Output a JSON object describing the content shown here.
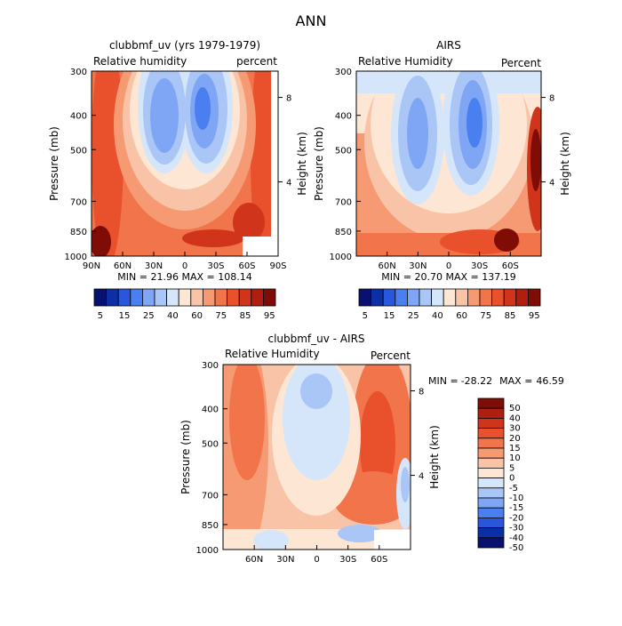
{
  "figure_title": "ANN",
  "chart_data": [
    {
      "type": "heatmap",
      "title": "clubbmf_uv (yrs 1979-1979)",
      "variable_label": "Relative humidity",
      "units_label": "percent",
      "ylabel": "Pressure (mb)",
      "ylabel_right": "Height (km)",
      "x_tick_labels": [
        "90N",
        "60N",
        "30N",
        "0",
        "30S",
        "60S",
        "90S"
      ],
      "y_tick_labels": [
        "300",
        "400",
        "500",
        "700",
        "850",
        "1000"
      ],
      "right_tick_labels": [
        "8",
        "4"
      ],
      "min_label": "MIN =",
      "min_value": "21.96",
      "max_label": "MAX =",
      "max_value": "108.14",
      "x_range": [
        90,
        -90
      ],
      "pressure_range": [
        300,
        1000
      ],
      "colorbar_tick_labels": [
        "5",
        "15",
        "25",
        "40",
        "60",
        "75",
        "85",
        "95"
      ],
      "colorbar_levels": [
        5,
        10,
        15,
        20,
        25,
        30,
        40,
        50,
        60,
        70,
        75,
        80,
        85,
        90,
        95
      ]
    },
    {
      "type": "heatmap",
      "title": "AIRS",
      "variable_label": "Relative Humidity",
      "units_label": "Percent",
      "ylabel": "Pressure (mb)",
      "ylabel_right": "Height (km)",
      "x_tick_labels": [
        "60N",
        "30N",
        "0",
        "30S",
        "60S"
      ],
      "y_tick_labels": [
        "300",
        "400",
        "500",
        "700",
        "850",
        "1000"
      ],
      "right_tick_labels": [
        "8",
        "4"
      ],
      "min_label": "MIN =",
      "min_value": "20.70",
      "max_label": "MAX =",
      "max_value": "137.19",
      "x_range": [
        90,
        -90
      ],
      "pressure_range": [
        300,
        1000
      ],
      "colorbar_tick_labels": [
        "5",
        "15",
        "25",
        "40",
        "60",
        "75",
        "85",
        "95"
      ],
      "colorbar_levels": [
        5,
        10,
        15,
        20,
        25,
        30,
        40,
        50,
        60,
        70,
        75,
        80,
        85,
        90,
        95
      ]
    },
    {
      "type": "heatmap",
      "title": "clubbmf_uv - AIRS",
      "variable_label": "Relative Humidity",
      "units_label": "Percent",
      "ylabel": "Pressure (mb)",
      "ylabel_right": "Height (km)",
      "x_tick_labels": [
        "60N",
        "30N",
        "0",
        "30S",
        "60S"
      ],
      "y_tick_labels": [
        "300",
        "400",
        "500",
        "700",
        "850",
        "1000"
      ],
      "right_tick_labels": [
        "8",
        "4"
      ],
      "min_label": "MIN =",
      "min_value": "-28.22",
      "max_label": "MAX =",
      "max_value": "46.59",
      "x_range": [
        90,
        -90
      ],
      "pressure_range": [
        300,
        1000
      ],
      "colorbar_tick_labels": [
        "50",
        "40",
        "30",
        "20",
        "15",
        "10",
        "5",
        "0",
        "-5",
        "-10",
        "-15",
        "-20",
        "-30",
        "-40",
        "-50"
      ],
      "colorbar_levels": [
        50,
        40,
        30,
        20,
        15,
        10,
        5,
        0,
        -5,
        -10,
        -15,
        -20,
        -30,
        -40,
        -50
      ]
    }
  ],
  "palette_abs": [
    "#08126e",
    "#0d2fa6",
    "#2857dc",
    "#4a7ff0",
    "#7ea6f5",
    "#a9c6f7",
    "#d6e6fa",
    "#fde6d4",
    "#f8c3a6",
    "#f59a73",
    "#f2744a",
    "#e8512b",
    "#d0341a",
    "#ae1f10",
    "#7f0d06"
  ],
  "palette_diff": [
    "#7f0d06",
    "#ae1f10",
    "#d0341a",
    "#e8512b",
    "#f2744a",
    "#f59a73",
    "#f8c3a6",
    "#fde6d4",
    "#d6e6fa",
    "#a9c6f7",
    "#7ea6f5",
    "#4a7ff0",
    "#2857dc",
    "#0d2fa6",
    "#08126e"
  ]
}
